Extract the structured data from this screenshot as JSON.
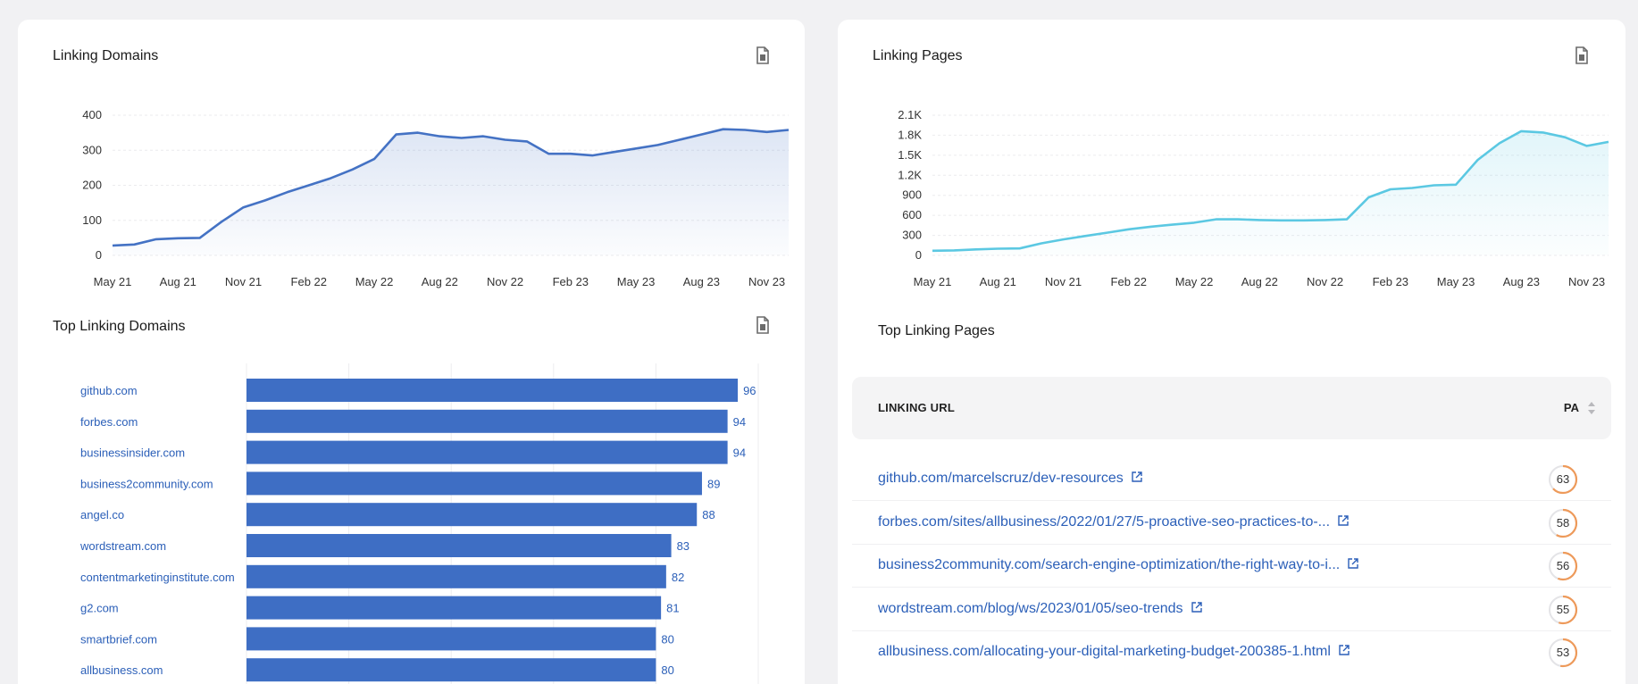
{
  "linking_domains": {
    "title": "Linking Domains",
    "export_icon": "export-file-icon"
  },
  "linking_pages": {
    "title": "Linking Pages",
    "export_icon": "export-file-icon"
  },
  "top_linking_domains": {
    "title": "Top Linking Domains",
    "export_icon": "export-file-icon"
  },
  "top_linking_pages": {
    "title": "Top Linking Pages",
    "table": {
      "columns": [
        "LINKING URL",
        "PA"
      ],
      "rows": [
        {
          "url": "github.com/marcelscruz/dev-resources",
          "pa": "63"
        },
        {
          "url": "forbes.com/sites/allbusiness/2022/01/27/5-proactive-seo-practices-to-...",
          "pa": "58"
        },
        {
          "url": "business2community.com/search-engine-optimization/the-right-way-to-i...",
          "pa": "56"
        },
        {
          "url": "wordstream.com/blog/ws/2023/01/05/seo-trends",
          "pa": "55"
        },
        {
          "url": "allbusiness.com/allocating-your-digital-marketing-budget-200385-1.html",
          "pa": "53"
        }
      ]
    }
  },
  "colors": {
    "domains_line": "#4472c4",
    "pages_line": "#5bc8e2",
    "bars": "#3e6ec4",
    "link": "#2b5fb8",
    "pa_ring": "#ee9a5a"
  },
  "chart_data": [
    {
      "type": "area",
      "title": "Linking Domains",
      "x": [
        "May 21",
        "Jun 21",
        "Jul 21",
        "Aug 21",
        "Sep 21",
        "Oct 21",
        "Nov 21",
        "Dec 21",
        "Jan 22",
        "Feb 22",
        "Mar 22",
        "Apr 22",
        "May 22",
        "Jun 22",
        "Jul 22",
        "Aug 22",
        "Sep 22",
        "Oct 22",
        "Nov 22",
        "Dec 22",
        "Jan 23",
        "Feb 23",
        "Mar 23",
        "Apr 23",
        "May 23",
        "Jun 23",
        "Jul 23",
        "Aug 23",
        "Sep 23",
        "Oct 23",
        "Nov 23",
        "Dec 23"
      ],
      "x_tick_labels": [
        "May 21",
        "Aug 21",
        "Nov 21",
        "Feb 22",
        "May 22",
        "Aug 22",
        "Nov 22",
        "Feb 23",
        "May 23",
        "Aug 23",
        "Nov 23"
      ],
      "series": [
        {
          "values": [
            28,
            31,
            46,
            49,
            50,
            96,
            137,
            157,
            180,
            200,
            220,
            245,
            275,
            345,
            350,
            340,
            335,
            340,
            330,
            325,
            290,
            290,
            285,
            295,
            305,
            315,
            330,
            345,
            360,
            358,
            352,
            358
          ]
        }
      ],
      "y_ticks": [
        "0",
        "100",
        "200",
        "300",
        "400"
      ],
      "ylim": [
        0,
        400
      ],
      "grid": true
    },
    {
      "type": "area",
      "title": "Linking Pages",
      "x": [
        "May 21",
        "Jun 21",
        "Jul 21",
        "Aug 21",
        "Sep 21",
        "Oct 21",
        "Nov 21",
        "Dec 21",
        "Jan 22",
        "Feb 22",
        "Mar 22",
        "Apr 22",
        "May 22",
        "Jun 22",
        "Jul 22",
        "Aug 22",
        "Sep 22",
        "Oct 22",
        "Nov 22",
        "Dec 22",
        "Jan 23",
        "Feb 23",
        "Mar 23",
        "Apr 23",
        "May 23",
        "Jun 23",
        "Jul 23",
        "Aug 23",
        "Sep 23",
        "Oct 23",
        "Nov 23",
        "Dec 23"
      ],
      "x_tick_labels": [
        "May 21",
        "Aug 21",
        "Nov 21",
        "Feb 22",
        "May 22",
        "Aug 22",
        "Nov 22",
        "Feb 23",
        "May 23",
        "Aug 23",
        "Nov 23"
      ],
      "series": [
        {
          "values": [
            70,
            75,
            90,
            100,
            105,
            180,
            240,
            290,
            340,
            390,
            430,
            460,
            490,
            540,
            540,
            530,
            525,
            525,
            530,
            540,
            870,
            990,
            1010,
            1050,
            1060,
            1430,
            1680,
            1860,
            1840,
            1770,
            1640,
            1700
          ]
        }
      ],
      "y_ticks": [
        "0",
        "300",
        "600",
        "900",
        "1.2K",
        "1.5K",
        "1.8K",
        "2.1K"
      ],
      "ylim": [
        0,
        2100
      ],
      "grid": true
    },
    {
      "type": "bar",
      "orientation": "horizontal",
      "title": "Top Linking Domains",
      "categories": [
        "github.com",
        "forbes.com",
        "businessinsider.com",
        "business2community.com",
        "angel.co",
        "wordstream.com",
        "contentmarketinginstitute.com",
        "g2.com",
        "smartbrief.com",
        "allbusiness.com"
      ],
      "values": [
        96,
        94,
        94,
        89,
        88,
        83,
        82,
        81,
        80,
        80
      ],
      "x_ticks": [
        "0",
        "20",
        "40",
        "60",
        "80",
        "100"
      ],
      "xlim": [
        0,
        100
      ],
      "data_labels": true
    }
  ]
}
